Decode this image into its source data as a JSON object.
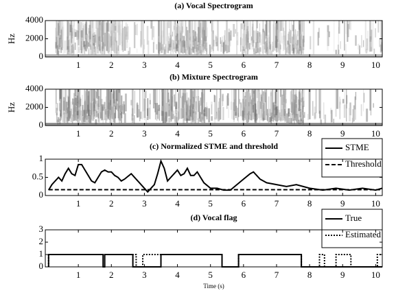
{
  "chart_data": [
    {
      "type": "spectrogram",
      "title": "(a) Vocal Spectrogram",
      "ylabel": "Hz",
      "xlim": [
        0,
        10.2
      ],
      "xticks": [
        1,
        2,
        3,
        4,
        5,
        6,
        7,
        8,
        9,
        10
      ],
      "ylim": [
        0,
        4000
      ],
      "yticks": [
        0,
        2000,
        4000
      ]
    },
    {
      "type": "spectrogram",
      "title": "(b) Mixture Spectrogram",
      "ylabel": "Hz",
      "xlim": [
        0,
        10.2
      ],
      "xticks": [
        1,
        2,
        3,
        4,
        5,
        6,
        7,
        8,
        9,
        10
      ],
      "ylim": [
        0,
        4000
      ],
      "yticks": [
        0,
        2000,
        4000
      ]
    },
    {
      "type": "line",
      "title": "(c) Normalized STME and threshold",
      "legend": "upper right",
      "xlim": [
        0,
        10.2
      ],
      "xticks": [
        1,
        2,
        3,
        4,
        5,
        6,
        7,
        8,
        9,
        10
      ],
      "ylim": [
        0,
        1
      ],
      "yticks": [
        0,
        0.5,
        1
      ],
      "series": [
        {
          "name": "STME",
          "color": "#000000",
          "dash": "solid",
          "x": [
            0.1,
            0.2,
            0.4,
            0.5,
            0.6,
            0.7,
            0.8,
            0.9,
            1.0,
            1.1,
            1.2,
            1.3,
            1.4,
            1.5,
            1.6,
            1.7,
            1.8,
            1.9,
            2.0,
            2.1,
            2.2,
            2.3,
            2.4,
            2.6,
            2.8,
            3.0,
            3.1,
            3.2,
            3.3,
            3.4,
            3.5,
            3.6,
            3.7,
            3.8,
            3.9,
            4.0,
            4.1,
            4.2,
            4.3,
            4.4,
            4.5,
            4.6,
            4.7,
            4.8,
            5.0,
            5.2,
            5.4,
            5.6,
            5.8,
            6.0,
            6.2,
            6.3,
            6.5,
            6.7,
            7.0,
            7.3,
            7.6,
            8.0,
            8.4,
            8.8,
            9.2,
            9.6,
            10.0,
            10.2
          ],
          "values": [
            0.15,
            0.3,
            0.5,
            0.4,
            0.6,
            0.75,
            0.6,
            0.55,
            0.85,
            0.85,
            0.7,
            0.55,
            0.4,
            0.35,
            0.5,
            0.65,
            0.7,
            0.65,
            0.65,
            0.55,
            0.5,
            0.4,
            0.45,
            0.6,
            0.4,
            0.2,
            0.1,
            0.2,
            0.3,
            0.6,
            0.95,
            0.75,
            0.4,
            0.5,
            0.6,
            0.7,
            0.55,
            0.6,
            0.75,
            0.55,
            0.55,
            0.65,
            0.5,
            0.35,
            0.2,
            0.2,
            0.15,
            0.15,
            0.3,
            0.45,
            0.6,
            0.65,
            0.45,
            0.35,
            0.3,
            0.25,
            0.3,
            0.2,
            0.15,
            0.2,
            0.15,
            0.2,
            0.15,
            0.2
          ]
        },
        {
          "name": "Threshold",
          "color": "#000000",
          "dash": "dashed",
          "x": [
            0.1,
            10.2
          ],
          "values": [
            0.16,
            0.16
          ]
        }
      ]
    },
    {
      "type": "line",
      "title": "(d) Vocal flag",
      "xlabel": "Time (s)",
      "legend": "upper right",
      "xlim": [
        0,
        10.2
      ],
      "xticks": [
        1,
        2,
        3,
        4,
        5,
        6,
        7,
        8,
        9,
        10
      ],
      "ylim": [
        0,
        3
      ],
      "yticks": [
        0,
        1,
        2,
        3
      ],
      "series": [
        {
          "name": "True",
          "color": "#000000",
          "dash": "solid",
          "x": [
            0.1,
            0.1,
            1.75,
            1.75,
            1.8,
            1.8,
            2.65,
            2.65,
            3.5,
            3.5,
            5.35,
            5.35,
            5.85,
            5.85,
            7.75,
            7.75,
            10.2
          ],
          "values": [
            0,
            1,
            1,
            0,
            0,
            1,
            1,
            0,
            0,
            1,
            1,
            0,
            0,
            1,
            1,
            0,
            0
          ]
        },
        {
          "name": "Estimated",
          "color": "#000000",
          "dash": "dotted",
          "x": [
            0.1,
            0.1,
            2.75,
            2.75,
            2.95,
            2.95,
            5.35,
            5.35,
            5.85,
            5.85,
            7.75,
            7.75,
            8.3,
            8.3,
            8.45,
            8.45,
            8.8,
            8.8,
            9.25,
            9.25,
            10.05,
            10.05,
            10.2
          ],
          "values": [
            0,
            1,
            1,
            0,
            0,
            1,
            1,
            0,
            0,
            1,
            1,
            0,
            0,
            1,
            1,
            0,
            0,
            1,
            1,
            0,
            0,
            1,
            1
          ]
        }
      ]
    }
  ]
}
